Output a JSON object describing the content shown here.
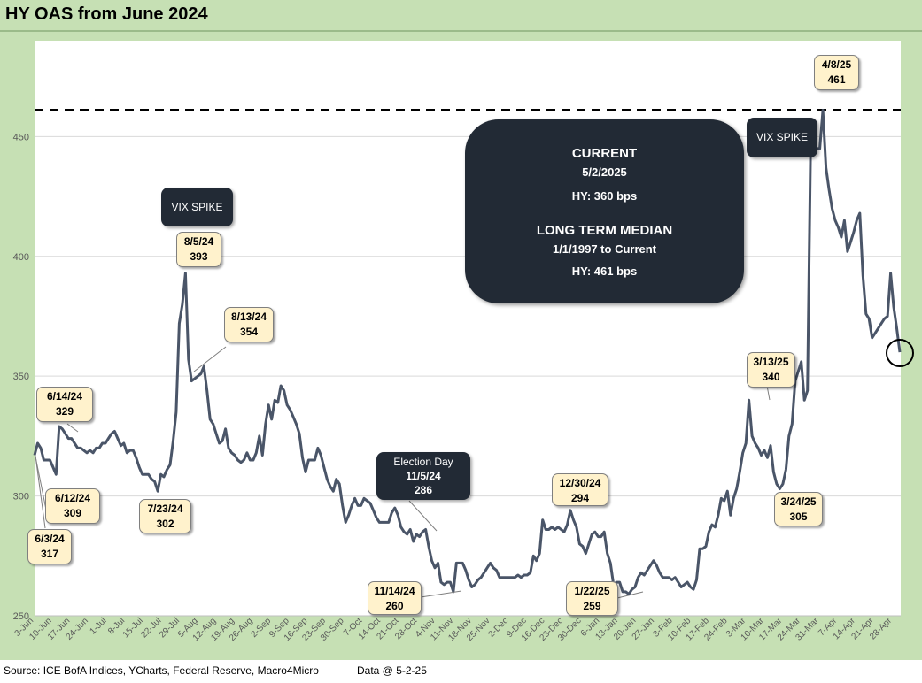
{
  "title": "HY OAS from June 2024",
  "footer": {
    "source": "Source: ICE BofA Indices, YCharts, Federal Reserve, Macro4Micro",
    "as_of": "Data @ 5-2-25"
  },
  "info_box": {
    "current_heading": "CURRENT",
    "current_date": "5/2/2025",
    "current_value": "HY:   360 bps",
    "median_heading": "LONG TERM MEDIAN",
    "median_period": "1/1/1997 to Current",
    "median_value": "HY: 461 bps"
  },
  "annotations": {
    "vix_spike_1": "VIX SPIKE",
    "vix_spike_2": "VIX SPIKE",
    "election_title": "Election Day",
    "election_date": "11/5/24",
    "election_value": "286",
    "c_614_date": "6/14/24",
    "c_614_value": "329",
    "c_612_date": "6/12/24",
    "c_612_value": "309",
    "c_603_date": "6/3/24",
    "c_603_value": "317",
    "c_723_date": "7/23/24",
    "c_723_value": "302",
    "c_805_date": "8/5/24",
    "c_805_value": "393",
    "c_813_date": "8/13/24",
    "c_813_value": "354",
    "c_1114_date": "11/14/24",
    "c_1114_value": "260",
    "c_1230_date": "12/30/24",
    "c_1230_value": "294",
    "c_0122_date": "1/22/25",
    "c_0122_value": "259",
    "c_0313_date": "3/13/25",
    "c_0313_value": "340",
    "c_0324_date": "3/24/25",
    "c_0324_value": "305",
    "c_0408_date": "4/8/25",
    "c_0408_value": "461"
  },
  "chart_data": {
    "type": "line",
    "title": "HY OAS from June 2024",
    "xlabel": "",
    "ylabel": "",
    "ylim": [
      250,
      490
    ],
    "yticks": [
      250,
      300,
      350,
      400,
      450
    ],
    "grid": true,
    "legend": "none",
    "reference_line": {
      "value": 461,
      "style": "dashed"
    },
    "line_color": "#4a5568",
    "x_tick_labels": [
      "3-Jun",
      "10-Jun",
      "17-Jun",
      "24-Jun",
      "1-Jul",
      "8-Jul",
      "15-Jul",
      "22-Jul",
      "29-Jul",
      "5-Aug",
      "12-Aug",
      "19-Aug",
      "26-Aug",
      "2-Sep",
      "9-Sep",
      "16-Sep",
      "23-Sep",
      "30-Sep",
      "7-Oct",
      "14-Oct",
      "21-Oct",
      "28-Oct",
      "4-Nov",
      "11-Nov",
      "18-Nov",
      "25-Nov",
      "2-Dec",
      "9-Dec",
      "16-Dec",
      "23-Dec",
      "30-Dec",
      "6-Jan",
      "13-Jan",
      "20-Jan",
      "27-Jan",
      "3-Feb",
      "10-Feb",
      "17-Feb",
      "24-Feb",
      "3-Mar",
      "10-Mar",
      "17-Mar",
      "24-Mar",
      "31-Mar",
      "7-Apr",
      "14-Apr",
      "21-Apr",
      "28-Apr"
    ],
    "series": [
      {
        "values": [
          317,
          322,
          320,
          315,
          315,
          315,
          312,
          309,
          329,
          328,
          326,
          324,
          324,
          322,
          320,
          320,
          319,
          318,
          319,
          318,
          320,
          320,
          322,
          322,
          324,
          326,
          327,
          324,
          321,
          322,
          318,
          319,
          319,
          316,
          312,
          309,
          309,
          309,
          307,
          306,
          302,
          309,
          308,
          311,
          313,
          323,
          335,
          372,
          380,
          393,
          357,
          348,
          349,
          350,
          351,
          354,
          344,
          332,
          330,
          326,
          322,
          323,
          328,
          320,
          318,
          317,
          315,
          314,
          315,
          318,
          315,
          315,
          318,
          325,
          317,
          330,
          338,
          332,
          340,
          339,
          346,
          344,
          338,
          336,
          333,
          330,
          326,
          316,
          310,
          315,
          315,
          315,
          320,
          317,
          312,
          307,
          304,
          302,
          307,
          305,
          296,
          289,
          292,
          296,
          299,
          296,
          296,
          299,
          298,
          297,
          294,
          291,
          289,
          289,
          289,
          289,
          293,
          295,
          292,
          287,
          285,
          284,
          286,
          281,
          284,
          283,
          285,
          286,
          279,
          273,
          270,
          272,
          264,
          263,
          264,
          264,
          260,
          272,
          272,
          272,
          269,
          265,
          262,
          263,
          265,
          266,
          268,
          270,
          272,
          270,
          269,
          266,
          266,
          266,
          266,
          266,
          266,
          267,
          266,
          267,
          267,
          268,
          275,
          273,
          276,
          290,
          286,
          286,
          287,
          286,
          287,
          286,
          285,
          288,
          294,
          290,
          287,
          280,
          279,
          276,
          280,
          284,
          285,
          283,
          283,
          285,
          276,
          272,
          263,
          264,
          264,
          260,
          260,
          259,
          261,
          262,
          266,
          268,
          267,
          269,
          271,
          273,
          271,
          268,
          266,
          266,
          266,
          265,
          266,
          264,
          262,
          263,
          264,
          262,
          261,
          265,
          278,
          278,
          279,
          285,
          288,
          287,
          292,
          299,
          298,
          302,
          292,
          299,
          303,
          310,
          318,
          322,
          340,
          325,
          322,
          320,
          317,
          319,
          316,
          321,
          310,
          305,
          303,
          305,
          311,
          325,
          330,
          348,
          352,
          356,
          340,
          344,
          445,
          445,
          445,
          445,
          461,
          437,
          428,
          420,
          415,
          412,
          408,
          415,
          402,
          406,
          410,
          415,
          418,
          392,
          376,
          374,
          366,
          368,
          370,
          372,
          374,
          375,
          393,
          379,
          370,
          360
        ]
      }
    ]
  }
}
